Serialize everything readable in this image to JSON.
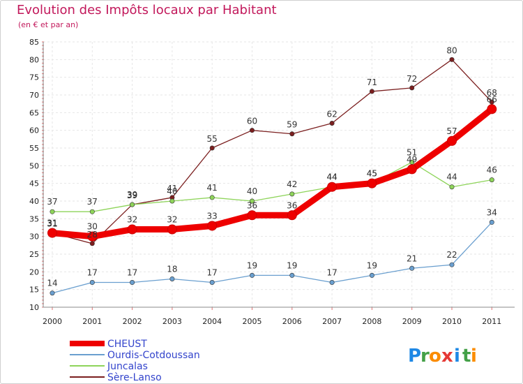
{
  "header": {
    "title": "Evolution des Impôts locaux par Habitant",
    "subtitle": "(en € et par an)"
  },
  "brand": {
    "letters": [
      {
        "char": "P",
        "color": "#1e88e5"
      },
      {
        "char": "r",
        "color": "#43a047"
      },
      {
        "char": "o",
        "color": "#fb8c00"
      },
      {
        "char": "x",
        "color": "#e53935"
      },
      {
        "char": "i",
        "color": "#1e88e5"
      },
      {
        "char": "t",
        "color": "#43a047"
      },
      {
        "char": "i",
        "color": "#fb8c00"
      }
    ]
  },
  "chart_data": {
    "type": "line",
    "title": "Evolution des Impôts locaux par Habitant",
    "subtitle": "(en € et par an)",
    "xlabel": "",
    "ylabel": "",
    "x": [
      "2000",
      "2001",
      "2002",
      "2003",
      "2004",
      "2005",
      "2006",
      "2007",
      "2008",
      "2009",
      "2010",
      "2011"
    ],
    "ylim": [
      10,
      85
    ],
    "yticks": [
      10,
      15,
      20,
      25,
      30,
      35,
      40,
      45,
      50,
      55,
      60,
      65,
      70,
      75,
      80,
      85
    ],
    "grid": true,
    "legend_position": "bottom-left",
    "series": [
      {
        "name": "Sère-Lanso",
        "color": "#7b1f1f",
        "values": [
          31,
          28,
          39,
          41,
          55,
          60,
          59,
          62,
          71,
          72,
          80,
          68
        ]
      },
      {
        "name": "Juncalas",
        "color": "#8ed45a",
        "values": [
          37,
          37,
          39,
          40,
          41,
          40,
          42,
          44,
          45,
          51,
          44,
          46
        ]
      },
      {
        "name": "Ourdis-Cotdoussan",
        "color": "#6a9fcf",
        "values": [
          14,
          17,
          17,
          18,
          17,
          19,
          19,
          17,
          19,
          21,
          22,
          34
        ]
      },
      {
        "name": "CHEUST",
        "color": "#ee0000",
        "values": [
          31,
          30,
          32,
          32,
          33,
          36,
          36,
          44,
          45,
          49,
          57,
          66
        ]
      }
    ],
    "legend_order": [
      "CHEUST",
      "Ourdis-Cotdoussan",
      "Juncalas",
      "Sère-Lanso"
    ]
  }
}
